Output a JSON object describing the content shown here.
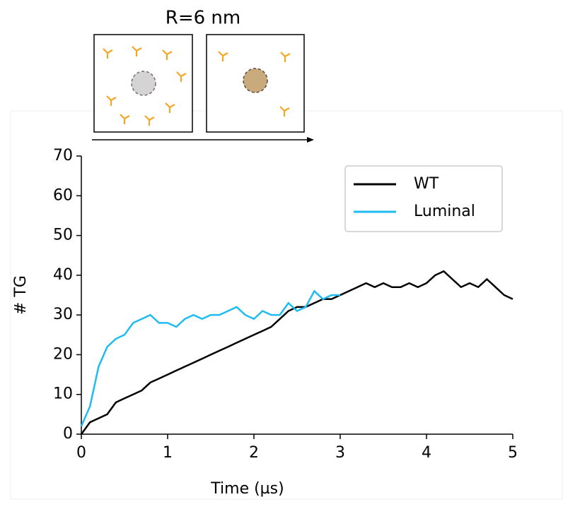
{
  "chart_data": {
    "type": "line",
    "title": "R=6 nm",
    "x_label": "Time (µs)",
    "y_label": "# TG",
    "xlim": [
      0,
      5
    ],
    "xticks": [
      0,
      1,
      2,
      3,
      4,
      5
    ],
    "ylim": [
      0,
      70
    ],
    "yticks": [
      0,
      10,
      20,
      30,
      40,
      50,
      60,
      70
    ],
    "legend": "upper right",
    "series": [
      {
        "name": "WT",
        "color": "#000000",
        "x": [
          0,
          0.1,
          0.2,
          0.3,
          0.4,
          0.5,
          0.6,
          0.7,
          0.8,
          0.9,
          1.0,
          1.1,
          1.2,
          1.3,
          1.4,
          1.5,
          1.6,
          1.7,
          1.8,
          1.9,
          2.0,
          2.1,
          2.2,
          2.3,
          2.4,
          2.5,
          2.6,
          2.7,
          2.8,
          2.9,
          3.0,
          3.1,
          3.2,
          3.3,
          3.4,
          3.5,
          3.6,
          3.7,
          3.8,
          3.9,
          4.0,
          4.1,
          4.2,
          4.3,
          4.4,
          4.5,
          4.6,
          4.7,
          4.8,
          4.9,
          5.0
        ],
        "values": [
          0,
          3,
          4,
          5,
          8,
          9,
          10,
          11,
          13,
          14,
          15,
          16,
          17,
          18,
          19,
          20,
          21,
          22,
          23,
          24,
          25,
          26,
          27,
          29,
          31,
          32,
          32,
          33,
          34,
          34,
          35,
          36,
          37,
          38,
          37,
          38,
          37,
          37,
          38,
          37,
          38,
          40,
          41,
          39,
          37,
          38,
          37,
          39,
          37,
          35,
          34
        ]
      },
      {
        "name": "Luminal",
        "color": "#1ebcf2",
        "x": [
          0,
          0.1,
          0.2,
          0.3,
          0.4,
          0.5,
          0.6,
          0.7,
          0.8,
          0.9,
          1.0,
          1.1,
          1.2,
          1.3,
          1.4,
          1.5,
          1.6,
          1.7,
          1.8,
          1.9,
          2.0,
          2.1,
          2.2,
          2.3,
          2.4,
          2.5,
          2.6,
          2.7,
          2.8,
          2.9,
          3.0
        ],
        "values": [
          2,
          7,
          17,
          22,
          24,
          25,
          28,
          29,
          30,
          28,
          28,
          27,
          29,
          30,
          29,
          30,
          30,
          31,
          32,
          30,
          29,
          31,
          30,
          30,
          33,
          31,
          32,
          36,
          34,
          35,
          35
        ]
      }
    ]
  }
}
